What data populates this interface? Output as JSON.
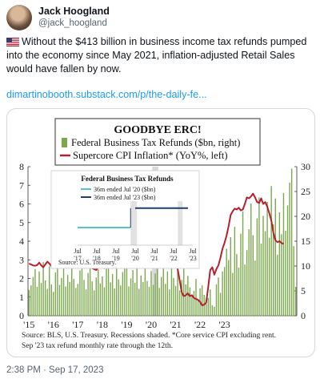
{
  "author": {
    "display_name": "Jack Hoogland",
    "handle": "@jack_hoogland"
  },
  "tweet": {
    "flag_icon": "us-flag-icon",
    "text": "Without the $413 billion in business income tax refunds pumped into the economy since May 2021, inflation-adjusted Retail Sales would have fallen by now.",
    "link": "dimartinobooth.substack.com/p/the-daily-fe..."
  },
  "timestamp": "2:38 PM · Sep 17, 2023",
  "chart_data": {
    "type": "bar+line",
    "title": "GOODBYE ERC!",
    "legend": {
      "bars": "Federal Business Tax Refunds ($bn, right)",
      "line": "Supercore CPI Inflation* (YoY%, left)"
    },
    "left_axis": {
      "ylim": [
        0,
        8
      ],
      "ticks": [
        "0",
        "1",
        "2",
        "3",
        "4",
        "5",
        "6",
        "7",
        "8"
      ]
    },
    "right_axis": {
      "ylim": [
        0,
        30
      ],
      "ticks": [
        "0",
        "5",
        "10",
        "15",
        "20",
        "25",
        "30"
      ]
    },
    "x_ticks": [
      "'15",
      "'16",
      "'17",
      "'18",
      "'19",
      "'20",
      "'21",
      "'22",
      "'23"
    ],
    "recessions_shaded": true,
    "colors": {
      "bars": "#7aa84a",
      "line": "#b51f2e",
      "shade": "#d9d9d9"
    },
    "refunds_monthly_bn": [
      5.2,
      6.1,
      7.8,
      9.4,
      5.8,
      8.9,
      6.6,
      10.8,
      7.1,
      5.4,
      9.9,
      6.3,
      4.8,
      8.7,
      11.2,
      6.2,
      7.6,
      9.6,
      5.9,
      8.2,
      6.8,
      10.3,
      7.4,
      5.6,
      6.4,
      9.1,
      12.4,
      7.2,
      5.3,
      8.6,
      10.5,
      6.9,
      5.1,
      7.7,
      9.3,
      6.5,
      7.9,
      5.7,
      10.1,
      11.6,
      6.7,
      8.4,
      5.5,
      9.7,
      7.3,
      6.1,
      8.8,
      10.6,
      12.1,
      5.9,
      7.5,
      9.2,
      6.6,
      10.9,
      5.4,
      8.1,
      6.8,
      11.3,
      7.0,
      5.8,
      9.0,
      6.2,
      8.5,
      10.4,
      5.6,
      7.8,
      12.7,
      6.4,
      8.9,
      5.3,
      10.2,
      7.6,
      6.0,
      9.5,
      5.1,
      7.2,
      11.9,
      6.3,
      8.0,
      5.7,
      3.9,
      5.0,
      7.4,
      3.2,
      5.5,
      6.1,
      4.2,
      2.4,
      3.6,
      5.3,
      2.1,
      1.8,
      6.3,
      7.7,
      4.6,
      8.9,
      9.8,
      13.5,
      11.2,
      15.8,
      8.6,
      17.9,
      12.4,
      9.7,
      16.5,
      21.0,
      10.3,
      13.2,
      17.4,
      22.6,
      16.2,
      11.1,
      19.6,
      23.8,
      14.5,
      20.1,
      17.0,
      22.9,
      15.7,
      26.1,
      18.4,
      23.6,
      12.3,
      20.8,
      16.4,
      24.7,
      17.1,
      22.2,
      26.8,
      29.6,
      14.0,
      5.8
    ],
    "refunds_legend": [
      "36m ended Jul '20 ($bn)",
      "36m ended Jul '23 ($bn)"
    ],
    "refunds_36m_bn": [
      20,
      42
    ],
    "inset": {
      "title": "Federal Business Tax Refunds",
      "source": "Source: U.S. Treasury.",
      "x_ticks": [
        "Jul\n'17",
        "Jul\n'18",
        "Jul\n'19",
        "Jul\n'20",
        "Jul\n'21",
        "Jul\n'22",
        "Jul\n'23"
      ]
    },
    "supercore_cpi_yoy": [
      2.8,
      2.75,
      2.7,
      2.68,
      2.72,
      2.85,
      2.7,
      2.6,
      2.75,
      2.9,
      2.8,
      2.65,
      2.9,
      3.0,
      3.05,
      2.95,
      3.1,
      3.2,
      3.1,
      3.05,
      3.0,
      3.15,
      3.2,
      3.25,
      3.2,
      3.1,
      2.95,
      2.85,
      2.7,
      2.75,
      2.6,
      2.55,
      2.5,
      2.45,
      2.6,
      2.7,
      2.6,
      2.55,
      2.7,
      2.8,
      2.75,
      2.85,
      2.9,
      2.85,
      2.95,
      2.9,
      3.0,
      2.95,
      3.05,
      2.95,
      3.0,
      2.9,
      2.85,
      2.9,
      2.95,
      2.85,
      3.0,
      3.05,
      3.0,
      3.0,
      2.95,
      2.9,
      3.0,
      3.05,
      3.1,
      3.0,
      2.95,
      3.05,
      3.0,
      3.1,
      3.05,
      3.0,
      2.9,
      2.5,
      1.9,
      1.25,
      1.05,
      1.1,
      1.2,
      1.05,
      1.1,
      0.95,
      0.9,
      0.85,
      0.75,
      0.55,
      0.6,
      0.7,
      1.55,
      2.45,
      2.6,
      2.2,
      2.5,
      2.7,
      3.1,
      3.6,
      3.9,
      4.3,
      4.8,
      5.4,
      5.6,
      5.75,
      5.7,
      5.8,
      5.65,
      5.7,
      6.0,
      6.35,
      6.3,
      6.4,
      6.55,
      6.35,
      6.1,
      6.05,
      6.3,
      6.0,
      6.1,
      5.85,
      5.5,
      5.1,
      4.45,
      4.05,
      3.95,
      4.0,
      3.9,
      3.85
    ]
  },
  "chart_footer": {
    "source_line1": "Source: BLS, U.S. Treasury. Recessions shaded. *Core service CPI excluding rent.",
    "source_line2": "Sep '23 tax refund monthly rate through the 12th."
  }
}
